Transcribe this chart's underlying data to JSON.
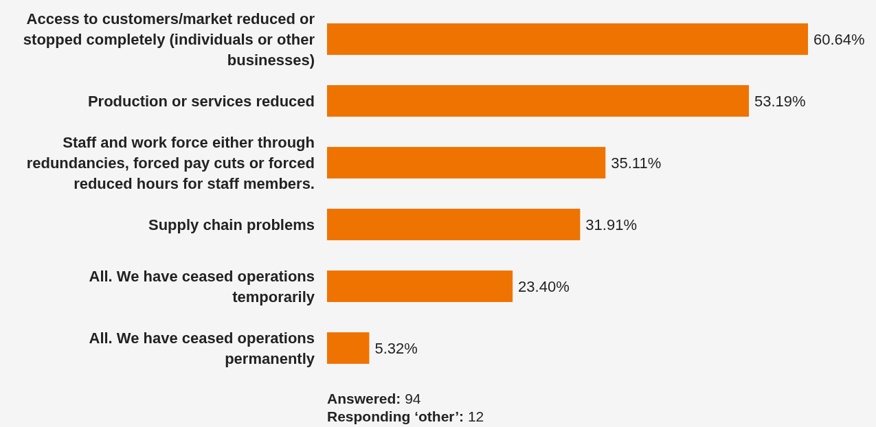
{
  "chart_data": {
    "type": "bar",
    "orientation": "horizontal",
    "categories": [
      "Access to customers/market reduced or stopped completely (individuals or other businesses)",
      "Production or services reduced",
      "Staff and work force either through redundancies, forced pay cuts or forced reduced hours for staff members.",
      "Supply chain problems",
      "All. We have ceased operations temporarily",
      "All. We have ceased operations permanently"
    ],
    "values": [
      60.64,
      53.19,
      35.11,
      31.91,
      23.4,
      5.32
    ],
    "value_labels": [
      "60.64%",
      "53.19%",
      "35.11%",
      "31.91%",
      "23.40%",
      "5.32%"
    ],
    "color": "#ef7300",
    "annotations": [
      "Answered: 94",
      "Responding ‘other’: 12"
    ]
  }
}
